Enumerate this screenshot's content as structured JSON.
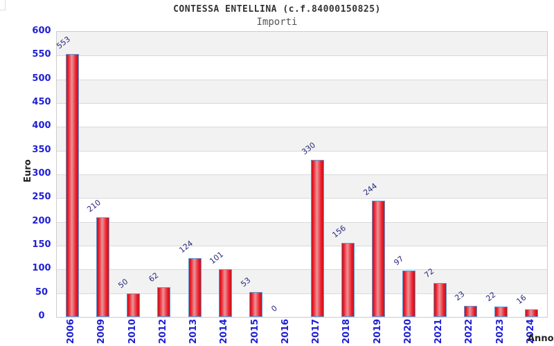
{
  "chart_data": {
    "type": "bar",
    "title": "CONTESSA ENTELLINA (c.f.84000150825)",
    "subtitle": "Importi",
    "xlabel": "Anno",
    "ylabel": "Euro",
    "categories": [
      "2006",
      "2009",
      "2010",
      "2012",
      "2013",
      "2014",
      "2015",
      "2016",
      "2017",
      "2018",
      "2019",
      "2020",
      "2021",
      "2022",
      "2023",
      "2024"
    ],
    "values": [
      553,
      210,
      50,
      62,
      124,
      101,
      53,
      0,
      330,
      156,
      244,
      97,
      72,
      23,
      22,
      16
    ],
    "ylim": [
      0,
      600
    ],
    "ytick_step": 50,
    "yticks": [
      0,
      50,
      100,
      150,
      200,
      250,
      300,
      350,
      400,
      450,
      500,
      550,
      600
    ],
    "grid": "horizontal alternating bands with gridlines every 50",
    "legend_position": "none",
    "colors": {
      "bar_fill_main": "#ef1d28",
      "bar_fill_mid_highlight": "#e8959a",
      "bar_fill_edge": "#c11420",
      "bar_border": "#5b9bd5",
      "tick_label": "#1f1fd6",
      "value_label": "#28287d",
      "band_gray": "#f2f2f2",
      "band_white": "#ffffff",
      "grid_line": "#d9d9d9",
      "plot_border": "#cccccc",
      "title": "#333333",
      "subtitle": "#555555",
      "axis_title": "#222222"
    }
  }
}
